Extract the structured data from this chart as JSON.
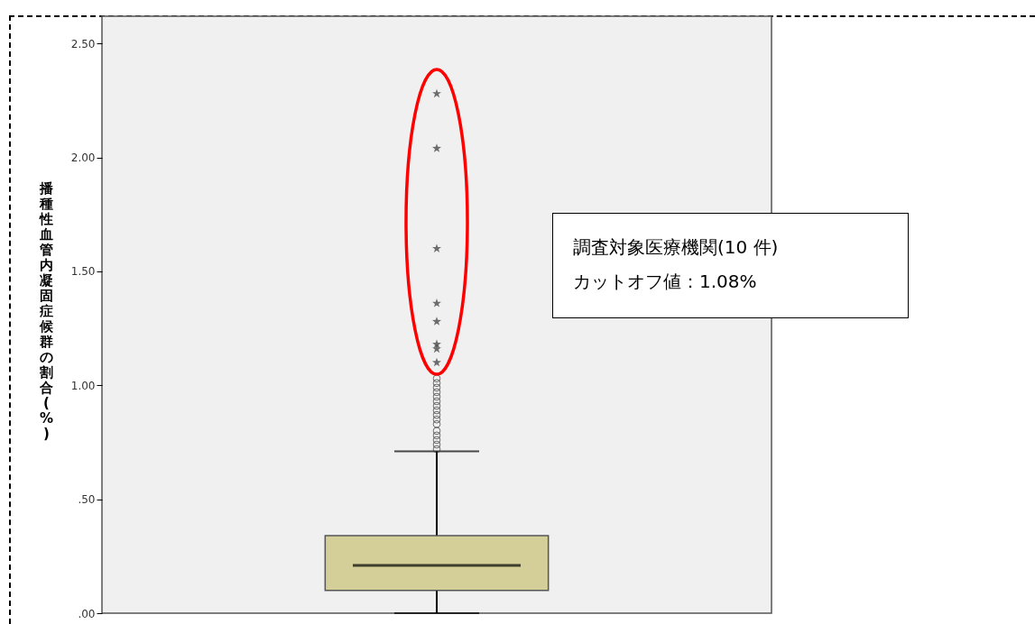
{
  "chart_data": {
    "type": "box",
    "ylabel": "播種性血管内凝固症候群の割合(%)",
    "categories": [
      null
    ],
    "boxes": [
      {
        "low": 0,
        "q1": 0.1,
        "median": 0.21,
        "q3": 0.34,
        "high": 0.71,
        "outliers": [
          1.03,
          1.01,
          0.99,
          0.97,
          0.95,
          0.93,
          0.91,
          0.89,
          0.87,
          0.85,
          0.83,
          0.8,
          0.78,
          0.76,
          0.74,
          0.72
        ]
      }
    ],
    "color": "#d4cf98",
    "series": [
      {
        "type": "scatter",
        "marker": "star",
        "color": "#333333",
        "x": [
          null,
          null,
          null,
          null,
          null,
          null,
          null,
          null
        ],
        "values": [
          2.28,
          2.04,
          1.6,
          1.36,
          1.28,
          1.18,
          1.16,
          1.1
        ]
      }
    ],
    "ylim": [
      0,
      2.62
    ],
    "yticks": [
      {
        "value": 0,
        "label": ".00"
      },
      {
        "value": 0.5,
        "label": ".50"
      },
      {
        "value": 1,
        "label": "1.00"
      },
      {
        "value": 1.5,
        "label": "1.50"
      },
      {
        "value": 2,
        "label": "2.00"
      },
      {
        "value": 2.5,
        "label": "2.50"
      }
    ],
    "tick_labels": "y",
    "annotations": [
      "調査対象医療機関(10 件)",
      "カットオフ値：1.08%"
    ]
  }
}
